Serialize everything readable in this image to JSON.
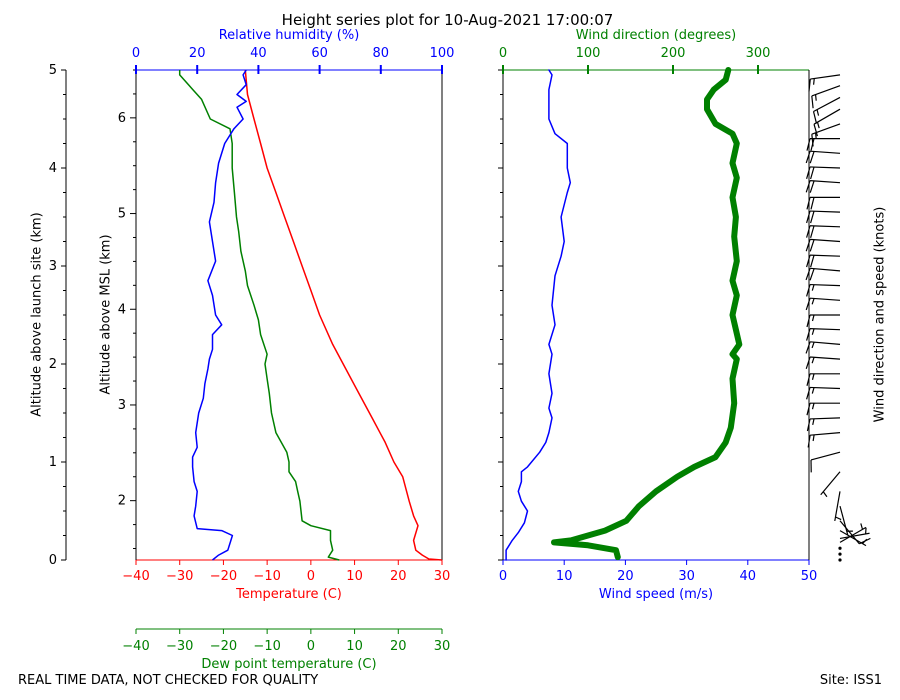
{
  "title": "Height series plot for 10-Aug-2021 17:00:07",
  "footer_left": "REAL TIME DATA, NOT CHECKED FOR QUALITY",
  "footer_right": "Site: ISS1",
  "colors": {
    "red": "#ff0000",
    "blue": "#0000ff",
    "green": "#008000",
    "black": "#000000"
  },
  "chart_data": [
    {
      "type": "line",
      "name": "thermo-humidity-panel",
      "yaxes": {
        "launch": {
          "label": "Altitude above launch site (km)",
          "ylim": [
            0,
            5
          ],
          "ticks": [
            0,
            1,
            2,
            3,
            4,
            5
          ]
        },
        "msl": {
          "label": "Altitude above MSL (km)",
          "ylim": [
            1.38,
            6.5
          ],
          "ticks": [
            2,
            3,
            4,
            5,
            6
          ]
        }
      },
      "xaxes": {
        "temperature": {
          "label": "Temperature (C)",
          "xlim": [
            -40,
            30
          ],
          "ticks": [
            -40,
            -30,
            -20,
            -10,
            0,
            10,
            20,
            30
          ],
          "color": "red"
        },
        "dewpoint": {
          "label": "Dew point temperature (C)",
          "xlim": [
            -40,
            30
          ],
          "ticks": [
            -40,
            -30,
            -20,
            -10,
            0,
            10,
            20,
            30
          ],
          "color": "green"
        },
        "rh": {
          "label": "Relative humidity (%)",
          "xlim": [
            0,
            100
          ],
          "ticks": [
            0,
            20,
            40,
            60,
            80,
            100
          ],
          "color": "blue"
        }
      },
      "series": [
        {
          "name": "Temperature",
          "axis": "temperature",
          "color": "red",
          "points": [
            [
              30,
              0
            ],
            [
              27,
              0.01
            ],
            [
              25.5,
              0.05
            ],
            [
              24,
              0.1
            ],
            [
              23.5,
              0.2
            ],
            [
              24.5,
              0.35
            ],
            [
              23.5,
              0.45
            ],
            [
              22.5,
              0.6
            ],
            [
              21,
              0.85
            ],
            [
              19,
              1.0
            ],
            [
              17,
              1.2
            ],
            [
              14,
              1.45
            ],
            [
              11,
              1.7
            ],
            [
              8,
              1.95
            ],
            [
              5,
              2.2
            ],
            [
              2,
              2.5
            ],
            [
              0,
              2.75
            ],
            [
              -2,
              3.0
            ],
            [
              -4,
              3.25
            ],
            [
              -6,
              3.5
            ],
            [
              -8,
              3.75
            ],
            [
              -10,
              4.0
            ],
            [
              -11.5,
              4.25
            ],
            [
              -13,
              4.5
            ],
            [
              -14.5,
              4.75
            ],
            [
              -15,
              5.0
            ]
          ]
        },
        {
          "name": "Dew point temperature",
          "axis": "dewpoint",
          "color": "green",
          "points": [
            [
              6.5,
              0
            ],
            [
              4,
              0.03
            ],
            [
              5,
              0.1
            ],
            [
              4.5,
              0.2
            ],
            [
              4.5,
              0.3
            ],
            [
              0,
              0.35
            ],
            [
              -2,
              0.4
            ],
            [
              -2.5,
              0.6
            ],
            [
              -3,
              0.7
            ],
            [
              -3.5,
              0.8
            ],
            [
              -5,
              0.9
            ],
            [
              -5,
              1.0
            ],
            [
              -5.5,
              1.1
            ],
            [
              -8,
              1.3
            ],
            [
              -9,
              1.5
            ],
            [
              -9.5,
              1.7
            ],
            [
              -10,
              1.85
            ],
            [
              -10.5,
              2.0
            ],
            [
              -10,
              2.1
            ],
            [
              -11.5,
              2.3
            ],
            [
              -12,
              2.45
            ],
            [
              -13,
              2.6
            ],
            [
              -14.5,
              2.8
            ],
            [
              -15,
              2.95
            ],
            [
              -16,
              3.15
            ],
            [
              -16.5,
              3.35
            ],
            [
              -17,
              3.5
            ],
            [
              -17.5,
              3.75
            ],
            [
              -18,
              4.0
            ],
            [
              -18,
              4.25
            ],
            [
              -18.5,
              4.4
            ],
            [
              -23,
              4.5
            ],
            [
              -25,
              4.7
            ],
            [
              -27,
              4.8
            ],
            [
              -28,
              4.85
            ],
            [
              -30,
              4.95
            ],
            [
              -30,
              5.0
            ]
          ]
        },
        {
          "name": "Relative humidity",
          "axis": "rh",
          "color": "blue",
          "points": [
            [
              25,
              0
            ],
            [
              27,
              0.05
            ],
            [
              30,
              0.1
            ],
            [
              31,
              0.2
            ],
            [
              31.5,
              0.25
            ],
            [
              28,
              0.3
            ],
            [
              20,
              0.32
            ],
            [
              19,
              0.45
            ],
            [
              19.5,
              0.55
            ],
            [
              20,
              0.7
            ],
            [
              19,
              0.8
            ],
            [
              18.5,
              0.95
            ],
            [
              18.5,
              1.05
            ],
            [
              20,
              1.15
            ],
            [
              19.5,
              1.3
            ],
            [
              20.5,
              1.5
            ],
            [
              22,
              1.65
            ],
            [
              22.5,
              1.8
            ],
            [
              23.5,
              1.95
            ],
            [
              24,
              2.05
            ],
            [
              25,
              2.15
            ],
            [
              25,
              2.3
            ],
            [
              28,
              2.4
            ],
            [
              26,
              2.5
            ],
            [
              25,
              2.7
            ],
            [
              23.5,
              2.85
            ],
            [
              26,
              3.05
            ],
            [
              25,
              3.25
            ],
            [
              24,
              3.45
            ],
            [
              25.5,
              3.65
            ],
            [
              26,
              3.85
            ],
            [
              27,
              4.05
            ],
            [
              29,
              4.25
            ],
            [
              32,
              4.4
            ],
            [
              35,
              4.5
            ],
            [
              33,
              4.62
            ],
            [
              36,
              4.68
            ],
            [
              33,
              4.75
            ],
            [
              36,
              4.85
            ],
            [
              35,
              4.95
            ],
            [
              36,
              5.0
            ]
          ]
        }
      ]
    },
    {
      "type": "line",
      "name": "wind-panel",
      "yaxis": {
        "ylim": [
          0,
          5
        ]
      },
      "xaxes": {
        "speed": {
          "label": "Wind speed (m/s)",
          "xlim": [
            0,
            50
          ],
          "ticks": [
            0,
            10,
            20,
            30,
            40,
            50
          ],
          "color": "blue"
        },
        "direction": {
          "label": "Wind direction (degrees)",
          "xlim": [
            0,
            360
          ],
          "ticks": [
            0,
            100,
            200,
            300
          ],
          "color": "green"
        }
      },
      "series": [
        {
          "name": "Wind speed",
          "axis": "speed",
          "color": "blue",
          "points": [
            [
              0.5,
              0
            ],
            [
              0.5,
              0.1
            ],
            [
              1.5,
              0.2
            ],
            [
              2.5,
              0.28
            ],
            [
              3.5,
              0.38
            ],
            [
              4,
              0.5
            ],
            [
              3,
              0.6
            ],
            [
              2.5,
              0.7
            ],
            [
              3,
              0.8
            ],
            [
              3,
              0.9
            ],
            [
              4,
              0.95
            ],
            [
              6,
              1.1
            ],
            [
              7,
              1.2
            ],
            [
              7.5,
              1.3
            ],
            [
              8,
              1.45
            ],
            [
              7.5,
              1.55
            ],
            [
              8,
              1.7
            ],
            [
              7.5,
              1.9
            ],
            [
              8,
              2.1
            ],
            [
              7.5,
              2.2
            ],
            [
              8.5,
              2.4
            ],
            [
              8,
              2.6
            ],
            [
              8.5,
              2.9
            ],
            [
              9.5,
              3.1
            ],
            [
              10,
              3.25
            ],
            [
              9.5,
              3.5
            ],
            [
              10.5,
              3.75
            ],
            [
              11,
              3.85
            ],
            [
              10.5,
              4.0
            ],
            [
              10.5,
              4.25
            ],
            [
              8.5,
              4.35
            ],
            [
              7.5,
              4.5
            ],
            [
              7.5,
              4.8
            ],
            [
              8,
              4.95
            ],
            [
              7.5,
              5.0
            ]
          ]
        },
        {
          "name": "Wind direction",
          "axis": "direction",
          "color": "green",
          "points": [
            [
              135,
              0.03
            ],
            [
              133,
              0.1
            ],
            [
              100,
              0.15
            ],
            [
              60,
              0.18
            ],
            [
              80,
              0.2
            ],
            [
              100,
              0.25
            ],
            [
              120,
              0.3
            ],
            [
              145,
              0.4
            ],
            [
              160,
              0.55
            ],
            [
              180,
              0.7
            ],
            [
              205,
              0.85
            ],
            [
              225,
              0.95
            ],
            [
              250,
              1.05
            ],
            [
              262,
              1.2
            ],
            [
              268,
              1.35
            ],
            [
              272,
              1.6
            ],
            [
              270,
              1.85
            ],
            [
              275,
              2.05
            ],
            [
              270,
              2.1
            ],
            [
              278,
              2.2
            ],
            [
              274,
              2.35
            ],
            [
              270,
              2.5
            ],
            [
              275,
              2.7
            ],
            [
              270,
              2.85
            ],
            [
              275,
              3.05
            ],
            [
              272,
              3.3
            ],
            [
              274,
              3.5
            ],
            [
              270,
              3.7
            ],
            [
              275,
              3.9
            ],
            [
              270,
              4.05
            ],
            [
              275,
              4.25
            ],
            [
              270,
              4.35
            ],
            [
              250,
              4.45
            ],
            [
              240,
              4.6
            ],
            [
              240,
              4.7
            ],
            [
              248,
              4.8
            ],
            [
              262,
              4.9
            ],
            [
              265,
              5.0
            ]
          ]
        }
      ]
    },
    {
      "type": "barbs",
      "name": "wind-barbs",
      "label": "Wind direction and speed (knots)",
      "barbs": [
        {
          "alt": 0.0,
          "dir": 135,
          "spd_kt": 0
        },
        {
          "alt": 0.06,
          "dir": 133,
          "spd_kt": 0
        },
        {
          "alt": 0.12,
          "dir": 100,
          "spd_kt": 2
        },
        {
          "alt": 0.18,
          "dir": 60,
          "spd_kt": 5
        },
        {
          "alt": 0.22,
          "dir": 80,
          "spd_kt": 6
        },
        {
          "alt": 0.3,
          "dir": 120,
          "spd_kt": 7
        },
        {
          "alt": 0.4,
          "dir": 140,
          "spd_kt": 8
        },
        {
          "alt": 0.55,
          "dir": 165,
          "spd_kt": 7
        },
        {
          "alt": 0.7,
          "dir": 190,
          "spd_kt": 5
        },
        {
          "alt": 0.9,
          "dir": 220,
          "spd_kt": 6
        },
        {
          "alt": 1.1,
          "dir": 255,
          "spd_kt": 12
        },
        {
          "alt": 1.3,
          "dir": 265,
          "spd_kt": 14
        },
        {
          "alt": 1.45,
          "dir": 268,
          "spd_kt": 15
        },
        {
          "alt": 1.6,
          "dir": 270,
          "spd_kt": 15
        },
        {
          "alt": 1.75,
          "dir": 272,
          "spd_kt": 15
        },
        {
          "alt": 1.9,
          "dir": 270,
          "spd_kt": 15
        },
        {
          "alt": 2.05,
          "dir": 274,
          "spd_kt": 15
        },
        {
          "alt": 2.2,
          "dir": 275,
          "spd_kt": 16
        },
        {
          "alt": 2.35,
          "dir": 272,
          "spd_kt": 16
        },
        {
          "alt": 2.5,
          "dir": 270,
          "spd_kt": 16
        },
        {
          "alt": 2.65,
          "dir": 274,
          "spd_kt": 17
        },
        {
          "alt": 2.8,
          "dir": 272,
          "spd_kt": 17
        },
        {
          "alt": 2.95,
          "dir": 275,
          "spd_kt": 18
        },
        {
          "alt": 3.1,
          "dir": 272,
          "spd_kt": 19
        },
        {
          "alt": 3.25,
          "dir": 274,
          "spd_kt": 19
        },
        {
          "alt": 3.4,
          "dir": 272,
          "spd_kt": 19
        },
        {
          "alt": 3.55,
          "dir": 272,
          "spd_kt": 20
        },
        {
          "alt": 3.7,
          "dir": 270,
          "spd_kt": 20
        },
        {
          "alt": 3.85,
          "dir": 274,
          "spd_kt": 21
        },
        {
          "alt": 4.0,
          "dir": 272,
          "spd_kt": 21
        },
        {
          "alt": 4.15,
          "dir": 274,
          "spd_kt": 21
        },
        {
          "alt": 4.3,
          "dir": 270,
          "spd_kt": 19
        },
        {
          "alt": 4.45,
          "dir": 250,
          "spd_kt": 17
        },
        {
          "alt": 4.6,
          "dir": 240,
          "spd_kt": 15
        },
        {
          "alt": 4.72,
          "dir": 242,
          "spd_kt": 15
        },
        {
          "alt": 4.84,
          "dir": 250,
          "spd_kt": 15
        },
        {
          "alt": 4.95,
          "dir": 262,
          "spd_kt": 15
        }
      ]
    }
  ]
}
